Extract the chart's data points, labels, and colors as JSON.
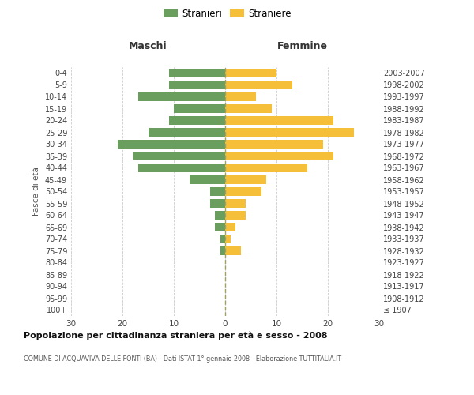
{
  "age_groups": [
    "100+",
    "95-99",
    "90-94",
    "85-89",
    "80-84",
    "75-79",
    "70-74",
    "65-69",
    "60-64",
    "55-59",
    "50-54",
    "45-49",
    "40-44",
    "35-39",
    "30-34",
    "25-29",
    "20-24",
    "15-19",
    "10-14",
    "5-9",
    "0-4"
  ],
  "birth_years": [
    "≤ 1907",
    "1908-1912",
    "1913-1917",
    "1918-1922",
    "1923-1927",
    "1928-1932",
    "1933-1937",
    "1938-1942",
    "1943-1947",
    "1948-1952",
    "1953-1957",
    "1958-1962",
    "1963-1967",
    "1968-1972",
    "1973-1977",
    "1978-1982",
    "1983-1987",
    "1988-1992",
    "1993-1997",
    "1998-2002",
    "2003-2007"
  ],
  "maschi": [
    0,
    0,
    0,
    0,
    0,
    1,
    1,
    2,
    2,
    3,
    3,
    7,
    17,
    18,
    21,
    15,
    11,
    10,
    17,
    11,
    11
  ],
  "femmine": [
    0,
    0,
    0,
    0,
    0,
    3,
    1,
    2,
    4,
    4,
    7,
    8,
    16,
    21,
    19,
    25,
    21,
    9,
    6,
    13,
    10
  ],
  "maschi_color": "#6a9e5e",
  "femmine_color": "#f5bf3a",
  "title": "Popolazione per cittadinanza straniera per età e sesso - 2008",
  "subtitle": "COMUNE DI ACQUAVIVA DELLE FONTI (BA) - Dati ISTAT 1° gennaio 2008 - Elaborazione TUTTITALIA.IT",
  "ylabel_left": "Fasce di età",
  "xlabel_maschi": "Maschi",
  "xlabel_femmine": "Femmine",
  "legend_stranieri": "Stranieri",
  "legend_straniere": "Straniere",
  "xlim": 30,
  "background_color": "#ffffff",
  "grid_color": "#cccccc",
  "dashed_line_color": "#a0a060"
}
